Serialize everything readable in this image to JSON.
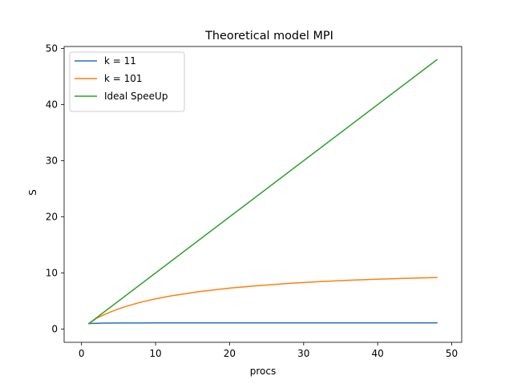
{
  "chart_data": {
    "type": "line",
    "title": "Theoretical model MPI",
    "xlabel": "procs",
    "ylabel": "S",
    "xlim": [
      -2.35,
      51.35
    ],
    "ylim": [
      -2.35,
      50.35
    ],
    "xticks": [
      0,
      10,
      20,
      30,
      40,
      50
    ],
    "yticks": [
      0,
      10,
      20,
      30,
      40,
      50
    ],
    "grid": false,
    "legend_position": "upper left",
    "series": [
      {
        "name": "k = 11",
        "color": "#1f77b4",
        "x": [
          1,
          2,
          3,
          4,
          5,
          6,
          8,
          10,
          12,
          16,
          20,
          24,
          28,
          32,
          36,
          40,
          44,
          48
        ],
        "y": [
          1.0,
          1.05,
          1.07,
          1.08,
          1.09,
          1.1,
          1.1,
          1.11,
          1.11,
          1.12,
          1.12,
          1.12,
          1.12,
          1.12,
          1.12,
          1.12,
          1.12,
          1.12
        ]
      },
      {
        "name": "k = 101",
        "color": "#ff7f0e",
        "x": [
          1,
          2,
          3,
          4,
          5,
          6,
          8,
          10,
          12,
          16,
          20,
          24,
          28,
          32,
          36,
          40,
          44,
          48
        ],
        "y": [
          1.0,
          1.9,
          2.55,
          3.1,
          3.6,
          4.05,
          4.8,
          5.4,
          5.9,
          6.7,
          7.3,
          7.75,
          8.15,
          8.45,
          8.7,
          8.9,
          9.05,
          9.2
        ]
      },
      {
        "name": "Ideal SpeeUp",
        "color": "#2ca02c",
        "x": [
          1,
          48
        ],
        "y": [
          1,
          48
        ]
      }
    ]
  }
}
